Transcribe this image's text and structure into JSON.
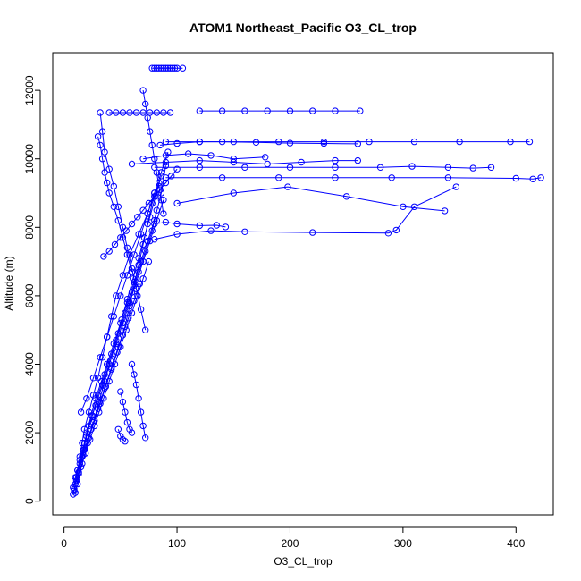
{
  "chart_data": {
    "type": "line",
    "title": "ATOM1 Northeast_Pacific O3_CL_trop",
    "xlabel": "O3_CL_trop",
    "ylabel": "Altitude (m)",
    "xlim": [
      -10,
      433
    ],
    "ylim": [
      -400,
      13100
    ],
    "xticks": [
      0,
      100,
      200,
      300,
      400
    ],
    "yticks": [
      0,
      2000,
      4000,
      6000,
      8000,
      10000,
      12000
    ],
    "xtick_labels": [
      "0",
      "100",
      "200",
      "300",
      "400"
    ],
    "ytick_labels": [
      "0",
      "2000",
      "4000",
      "6000",
      "8000",
      "10000",
      "12000"
    ],
    "marker": "open-circle",
    "grid": false,
    "color": "#0000ff",
    "series": [
      {
        "x": [
          8,
          10,
          12,
          14,
          16,
          18,
          22,
          26,
          30,
          34,
          38,
          42,
          46,
          52,
          58,
          66,
          74,
          80,
          86,
          92
        ],
        "y": [
          200,
          500,
          900,
          1300,
          1700,
          2100,
          2600,
          3100,
          3600,
          4200,
          4800,
          5400,
          6000,
          6600,
          7200,
          7800,
          8400,
          9000,
          9600,
          10200
        ]
      },
      {
        "x": [
          9,
          11,
          14,
          17,
          20,
          24,
          28,
          33,
          38,
          44,
          50,
          56,
          62,
          68,
          74,
          80,
          86,
          90
        ],
        "y": [
          300,
          700,
          1100,
          1500,
          2000,
          2500,
          3000,
          3500,
          4000,
          4600,
          5200,
          5800,
          6400,
          7000,
          7600,
          8200,
          9000,
          9800
        ]
      },
      {
        "x": [
          10,
          13,
          16,
          20,
          25,
          30,
          36,
          42,
          48,
          54,
          60,
          66,
          72,
          78,
          82
        ],
        "y": [
          250,
          800,
          1300,
          1900,
          2500,
          3100,
          3700,
          4300,
          4900,
          5500,
          6100,
          6700,
          7300,
          7900,
          8500
        ]
      },
      {
        "x": [
          8,
          12,
          18,
          24,
          30,
          36,
          42,
          48,
          54,
          58,
          62,
          66,
          70,
          74,
          78,
          84
        ],
        "y": [
          400,
          900,
          1500,
          2100,
          2700,
          3300,
          3900,
          4500,
          5100,
          5700,
          6300,
          6900,
          7500,
          8100,
          8700,
          9300
        ]
      },
      {
        "x": [
          11,
          15,
          19,
          23,
          27,
          31,
          35,
          40,
          45,
          50,
          55,
          60,
          65,
          70,
          75
        ],
        "y": [
          600,
          1000,
          1400,
          1800,
          2200,
          2600,
          3000,
          3500,
          4000,
          4500,
          5000,
          5500,
          6000,
          6500,
          7000
        ]
      },
      {
        "x": [
          9,
          13,
          17,
          22,
          27,
          32,
          37,
          42,
          47,
          52,
          57,
          62,
          67
        ],
        "y": [
          350,
          850,
          1350,
          1850,
          2350,
          2850,
          3350,
          3850,
          4350,
          4850,
          5350,
          5850,
          6350
        ]
      },
      {
        "x": [
          12,
          16,
          21,
          26,
          31,
          36,
          41,
          46,
          51,
          56,
          61,
          66,
          71,
          76,
          81,
          86
        ],
        "y": [
          500,
          1100,
          1700,
          2300,
          2900,
          3500,
          4100,
          4700,
          5300,
          5900,
          6500,
          7100,
          7700,
          8300,
          8900,
          9500
        ]
      },
      {
        "x": [
          10,
          14,
          18,
          22,
          28,
          34,
          40,
          46,
          52,
          58,
          64,
          70,
          76,
          82,
          88
        ],
        "y": [
          700,
          1200,
          1700,
          2200,
          2800,
          3400,
          4000,
          4600,
          5200,
          5800,
          6400,
          7000,
          7600,
          8200,
          8800
        ]
      },
      {
        "x": [
          15,
          20,
          26,
          32,
          38,
          44,
          50,
          56,
          62,
          68,
          74,
          80
        ],
        "y": [
          2600,
          3000,
          3600,
          4200,
          4800,
          5400,
          6000,
          6600,
          7200,
          7800,
          8400,
          9000
        ]
      },
      {
        "x": [
          30,
          32,
          34,
          36,
          38,
          40,
          44,
          48,
          52,
          56,
          60
        ],
        "y": [
          10650,
          10400,
          10000,
          9600,
          9300,
          9000,
          8600,
          8200,
          7700,
          7200,
          6700
        ]
      },
      {
        "x": [
          32,
          34,
          36,
          40,
          44,
          48,
          52,
          56,
          60,
          64,
          68,
          72
        ],
        "y": [
          11350,
          10800,
          10200,
          9700,
          9200,
          8600,
          8000,
          7400,
          6800,
          6200,
          5600,
          5000
        ]
      },
      {
        "x": [
          35,
          40,
          45,
          50,
          55,
          60,
          65,
          70,
          75,
          80,
          85,
          90,
          95,
          100
        ],
        "y": [
          7150,
          7300,
          7500,
          7700,
          7900,
          8100,
          8300,
          8500,
          8700,
          8900,
          9100,
          9300,
          9500,
          9700
        ]
      },
      {
        "x": [
          70,
          72,
          74,
          76,
          78,
          80,
          82,
          84,
          86,
          88
        ],
        "y": [
          12000,
          11600,
          11200,
          10800,
          10400,
          10000,
          9600,
          9200,
          8800,
          8400
        ]
      },
      {
        "x": [
          78,
          80,
          82,
          84,
          86,
          88,
          90,
          92,
          94,
          96,
          98,
          100,
          105
        ],
        "y": [
          12650,
          12650,
          12650,
          12650,
          12650,
          12650,
          12650,
          12650,
          12650,
          12650,
          12650,
          12650,
          12650
        ]
      },
      {
        "x": [
          40,
          46,
          52,
          58,
          64,
          70,
          76,
          82,
          88,
          94
        ],
        "y": [
          11350,
          11350,
          11350,
          11350,
          11350,
          11350,
          11350,
          11350,
          11350,
          11350
        ]
      },
      {
        "x": [
          120,
          140,
          160,
          180,
          200,
          220,
          240,
          262
        ],
        "y": [
          11400,
          11400,
          11400,
          11400,
          11400,
          11400,
          11400,
          11400
        ]
      },
      {
        "x": [
          90,
          120,
          150,
          190,
          230,
          270,
          310,
          350,
          395,
          412
        ],
        "y": [
          10500,
          10500,
          10500,
          10500,
          10500,
          10500,
          10500,
          10500,
          10500,
          10500
        ]
      },
      {
        "x": [
          85,
          100,
          120,
          140,
          170,
          200,
          230,
          260
        ],
        "y": [
          10400,
          10450,
          10500,
          10500,
          10480,
          10460,
          10450,
          10440
        ]
      },
      {
        "x": [
          70,
          90,
          110,
          130,
          150,
          178
        ],
        "y": [
          10000,
          10100,
          10150,
          10100,
          10000,
          10050
        ]
      },
      {
        "x": [
          60,
          90,
          120,
          150,
          180,
          210,
          240,
          260
        ],
        "y": [
          9850,
          9900,
          9950,
          9900,
          9850,
          9900,
          9950,
          9950
        ]
      },
      {
        "x": [
          80,
          120,
          160,
          200,
          240,
          280,
          308,
          340,
          362,
          378
        ],
        "y": [
          9750,
          9750,
          9750,
          9750,
          9750,
          9750,
          9780,
          9750,
          9730,
          9750
        ]
      },
      {
        "x": [
          100,
          150,
          198,
          250,
          300,
          337
        ],
        "y": [
          8700,
          9000,
          9180,
          8900,
          8600,
          8480
        ]
      },
      {
        "x": [
          90,
          140,
          190,
          240,
          290,
          340,
          400,
          415,
          422
        ],
        "y": [
          9450,
          9450,
          9450,
          9450,
          9450,
          9450,
          9430,
          9410,
          9450
        ]
      },
      {
        "x": [
          80,
          100,
          130,
          160,
          220,
          287,
          294,
          310,
          347
        ],
        "y": [
          7650,
          7800,
          7900,
          7870,
          7850,
          7830,
          7920,
          8600,
          9180
        ]
      },
      {
        "x": [
          80,
          90,
          100,
          120,
          135,
          143
        ],
        "y": [
          8100,
          8150,
          8100,
          8050,
          8060,
          8010
        ]
      },
      {
        "x": [
          60,
          62,
          64,
          66,
          68,
          70,
          72
        ],
        "y": [
          4000,
          3700,
          3400,
          3000,
          2600,
          2200,
          1850
        ]
      },
      {
        "x": [
          50,
          52,
          54,
          56,
          58,
          60
        ],
        "y": [
          3200,
          2900,
          2600,
          2300,
          2100,
          2000
        ]
      },
      {
        "x": [
          48,
          50,
          52,
          54
        ],
        "y": [
          2100,
          1900,
          1800,
          1750
        ]
      }
    ]
  }
}
